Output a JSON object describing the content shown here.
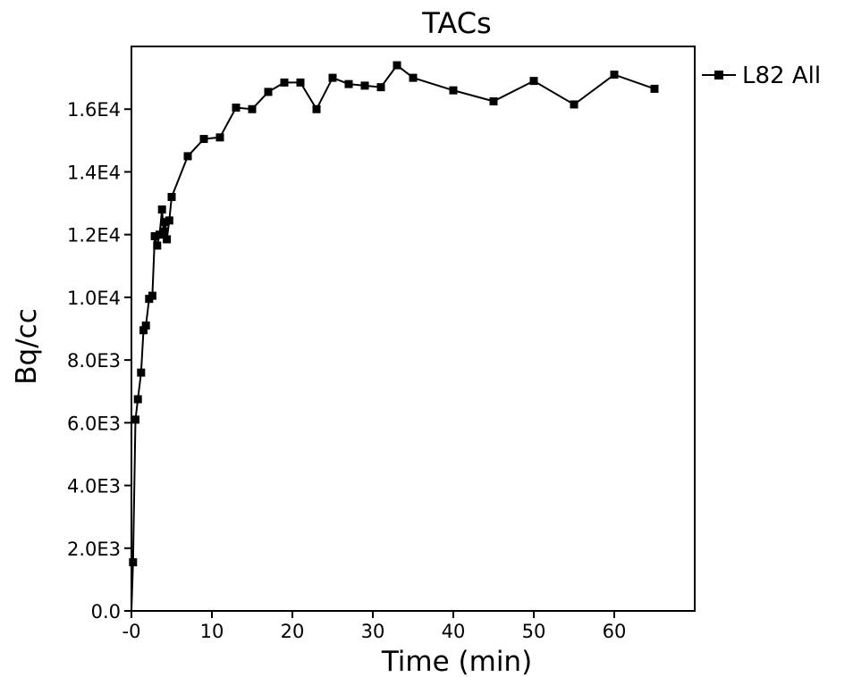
{
  "chart_data": {
    "type": "line",
    "title": "TACs",
    "xlabel": "Time (min)",
    "ylabel": "Bq/cc",
    "xlim": [
      0,
      70
    ],
    "ylim": [
      0,
      18000
    ],
    "xticks": [
      0,
      10,
      20,
      30,
      40,
      50,
      60
    ],
    "xtick_labels": [
      "-0",
      "10",
      "20",
      "30",
      "40",
      "50",
      "60"
    ],
    "yticks": [
      0,
      2000,
      4000,
      6000,
      8000,
      10000,
      12000,
      14000,
      16000
    ],
    "ytick_labels": [
      "0.0",
      "2.0E3",
      "4.0E3",
      "6.0E3",
      "8.0E3",
      "1.0E4",
      "1.2E4",
      "1.4E4",
      "1.6E4"
    ],
    "grid": false,
    "legend": {
      "placement": "outside-top-right",
      "entries": [
        "L82 All"
      ]
    },
    "series": [
      {
        "name": "L82 All",
        "color": "#000000",
        "marker": "square",
        "points": [
          [
            0,
            0
          ],
          [
            0.2,
            1550
          ],
          [
            0.5,
            6100
          ],
          [
            0.8,
            6750
          ],
          [
            1.2,
            7600
          ],
          [
            1.5,
            8950
          ],
          [
            1.8,
            9100
          ],
          [
            2.2,
            9950
          ],
          [
            2.6,
            10050
          ],
          [
            2.9,
            11950
          ],
          [
            3.2,
            11650
          ],
          [
            3.5,
            12000
          ],
          [
            3.8,
            12800
          ],
          [
            4.0,
            12100
          ],
          [
            4.2,
            12400
          ],
          [
            4.4,
            11850
          ],
          [
            4.7,
            12450
          ],
          [
            5.0,
            13200
          ],
          [
            7.0,
            14500
          ],
          [
            9.0,
            15050
          ],
          [
            11.0,
            15100
          ],
          [
            13.0,
            16050
          ],
          [
            15.0,
            16000
          ],
          [
            17.0,
            16550
          ],
          [
            19.0,
            16850
          ],
          [
            21.0,
            16850
          ],
          [
            23.0,
            16000
          ],
          [
            25.0,
            17000
          ],
          [
            27.0,
            16800
          ],
          [
            29.0,
            16750
          ],
          [
            31.0,
            16700
          ],
          [
            33.0,
            17400
          ],
          [
            35.0,
            17000
          ],
          [
            40.0,
            16600
          ],
          [
            45.0,
            16250
          ],
          [
            50.0,
            16900
          ],
          [
            55.0,
            16150
          ],
          [
            60.0,
            17100
          ],
          [
            65.0,
            16650
          ]
        ]
      }
    ]
  }
}
